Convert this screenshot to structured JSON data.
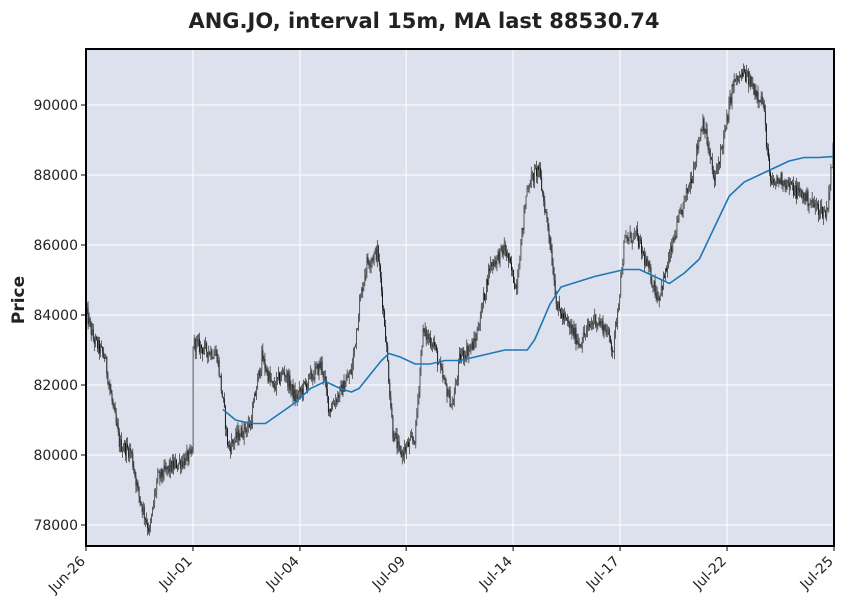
{
  "chart_data": {
    "type": "candlestick",
    "title": "ANG.JO, interval 15m, MA last 88530.74",
    "xlabel": "",
    "ylabel": "Price",
    "ylim": [
      77400,
      91600
    ],
    "grid": true,
    "x_tick_labels": [
      "Jun-26",
      "Jul-01",
      "Jul-04",
      "Jul-09",
      "Jul-14",
      "Jul-17",
      "Jul-22",
      "Jul-25"
    ],
    "y_ticks": [
      78000,
      80000,
      82000,
      84000,
      86000,
      88000,
      90000
    ],
    "y_tick_labels": [
      "78000",
      "80000",
      "82000",
      "84000",
      "86000",
      "88000",
      "90000"
    ],
    "price_path": [
      [
        0.0,
        84100
      ],
      [
        0.01,
        83300
      ],
      [
        0.025,
        82800
      ],
      [
        0.035,
        81500
      ],
      [
        0.045,
        80300
      ],
      [
        0.06,
        80100
      ],
      [
        0.07,
        78900
      ],
      [
        0.085,
        77800
      ],
      [
        0.095,
        79300
      ],
      [
        0.11,
        79600
      ],
      [
        0.142,
        80000
      ],
      [
        0.143,
        83200
      ],
      [
        0.16,
        83000
      ],
      [
        0.175,
        82900
      ],
      [
        0.185,
        81200
      ],
      [
        0.19,
        80200
      ],
      [
        0.205,
        80600
      ],
      [
        0.22,
        80900
      ],
      [
        0.235,
        82800
      ],
      [
        0.25,
        81900
      ],
      [
        0.265,
        82400
      ],
      [
        0.28,
        81600
      ],
      [
        0.3,
        82200
      ],
      [
        0.315,
        82600
      ],
      [
        0.325,
        81300
      ],
      [
        0.34,
        81800
      ],
      [
        0.355,
        82400
      ],
      [
        0.365,
        84200
      ],
      [
        0.375,
        85500
      ],
      [
        0.39,
        85800
      ],
      [
        0.4,
        83600
      ],
      [
        0.41,
        80700
      ],
      [
        0.42,
        80000
      ],
      [
        0.44,
        80500
      ],
      [
        0.45,
        83500
      ],
      [
        0.465,
        83200
      ],
      [
        0.475,
        82300
      ],
      [
        0.49,
        81400
      ],
      [
        0.5,
        82800
      ],
      [
        0.52,
        83200
      ],
      [
        0.54,
        85400
      ],
      [
        0.56,
        85900
      ],
      [
        0.575,
        84800
      ],
      [
        0.59,
        87700
      ],
      [
        0.605,
        88200
      ],
      [
        0.62,
        86200
      ],
      [
        0.63,
        84200
      ],
      [
        0.645,
        83700
      ],
      [
        0.66,
        83200
      ],
      [
        0.68,
        83900
      ],
      [
        0.695,
        83600
      ],
      [
        0.705,
        83000
      ],
      [
        0.72,
        86100
      ],
      [
        0.735,
        86300
      ],
      [
        0.75,
        85400
      ],
      [
        0.765,
        84500
      ],
      [
        0.775,
        85200
      ],
      [
        0.79,
        86500
      ],
      [
        0.81,
        88000
      ],
      [
        0.825,
        89600
      ],
      [
        0.84,
        87800
      ],
      [
        0.855,
        89300
      ],
      [
        0.865,
        90600
      ],
      [
        0.88,
        90900
      ],
      [
        0.905,
        90100
      ],
      [
        0.915,
        87700
      ],
      [
        0.93,
        87900
      ],
      [
        0.945,
        87600
      ],
      [
        0.96,
        87400
      ],
      [
        0.975,
        87100
      ],
      [
        0.99,
        86900
      ],
      [
        1.0,
        88900
      ]
    ],
    "moving_average_path": [
      [
        0.183,
        81300
      ],
      [
        0.2,
        81000
      ],
      [
        0.22,
        80900
      ],
      [
        0.24,
        80900
      ],
      [
        0.26,
        81200
      ],
      [
        0.28,
        81500
      ],
      [
        0.3,
        81900
      ],
      [
        0.32,
        82100
      ],
      [
        0.34,
        81900
      ],
      [
        0.355,
        81800
      ],
      [
        0.365,
        81900
      ],
      [
        0.38,
        82300
      ],
      [
        0.395,
        82700
      ],
      [
        0.405,
        82900
      ],
      [
        0.42,
        82800
      ],
      [
        0.44,
        82600
      ],
      [
        0.46,
        82600
      ],
      [
        0.48,
        82700
      ],
      [
        0.5,
        82700
      ],
      [
        0.52,
        82800
      ],
      [
        0.54,
        82900
      ],
      [
        0.56,
        83000
      ],
      [
        0.58,
        83000
      ],
      [
        0.59,
        83000
      ],
      [
        0.6,
        83300
      ],
      [
        0.62,
        84300
      ],
      [
        0.635,
        84800
      ],
      [
        0.65,
        84900
      ],
      [
        0.68,
        85100
      ],
      [
        0.7,
        85200
      ],
      [
        0.72,
        85300
      ],
      [
        0.74,
        85300
      ],
      [
        0.76,
        85100
      ],
      [
        0.78,
        84900
      ],
      [
        0.8,
        85200
      ],
      [
        0.82,
        85600
      ],
      [
        0.84,
        86500
      ],
      [
        0.86,
        87400
      ],
      [
        0.88,
        87800
      ],
      [
        0.9,
        88000
      ],
      [
        0.92,
        88200
      ],
      [
        0.94,
        88400
      ],
      [
        0.96,
        88500
      ],
      [
        0.98,
        88500
      ],
      [
        1.0,
        88530.74
      ]
    ],
    "moving_average_last": 88530.74
  },
  "colors": {
    "plot_bg": "#dce1ed",
    "grid": "#ffffff",
    "candles": "#2b2b2b",
    "ma_line": "#1f77b4",
    "frame": "#000000"
  }
}
